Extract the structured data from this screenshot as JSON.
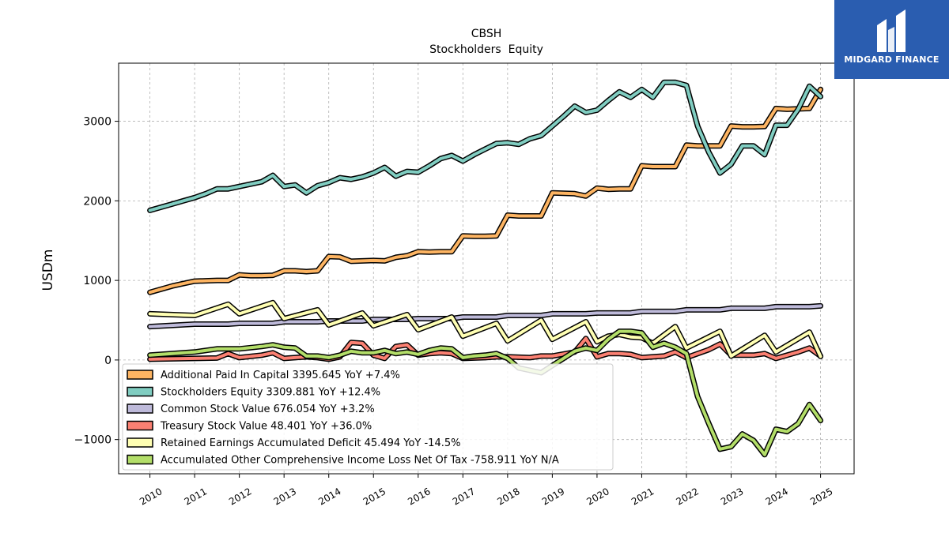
{
  "logo": {
    "text": "MIDGARD FINANCE",
    "bg_color": "#2a5db0"
  },
  "chart_data": {
    "type": "line",
    "title": "CBSH",
    "subtitle": "Stockholders  Equity",
    "ylabel": "USDm",
    "xlabel": "",
    "ylim": [
      -1430,
      3730
    ],
    "xlim": [
      2009.3,
      2025.75
    ],
    "yticks": [
      -1000,
      0,
      1000,
      2000,
      3000
    ],
    "ytick_labels": [
      "−1000",
      "0",
      "1000",
      "2000",
      "3000"
    ],
    "xticks": [
      2010,
      2011,
      2012,
      2013,
      2014,
      2015,
      2016,
      2017,
      2018,
      2019,
      2020,
      2021,
      2022,
      2023,
      2024,
      2025
    ],
    "grid": true,
    "legend_position": "lower-left",
    "series": [
      {
        "name": "Additional Paid In Capital",
        "legend": "Additional Paid In Capital  3395.645 YoY +7.4%",
        "color": "#fdb462",
        "points": [
          [
            2010.0,
            850
          ],
          [
            2010.25,
            890
          ],
          [
            2010.5,
            930
          ],
          [
            2010.75,
            960
          ],
          [
            2011.0,
            990
          ],
          [
            2011.25,
            995
          ],
          [
            2011.5,
            1000
          ],
          [
            2011.75,
            1000
          ],
          [
            2012.0,
            1070
          ],
          [
            2012.25,
            1060
          ],
          [
            2012.5,
            1060
          ],
          [
            2012.75,
            1065
          ],
          [
            2013.0,
            1120
          ],
          [
            2013.25,
            1120
          ],
          [
            2013.5,
            1110
          ],
          [
            2013.75,
            1120
          ],
          [
            2014.0,
            1300
          ],
          [
            2014.25,
            1295
          ],
          [
            2014.5,
            1240
          ],
          [
            2014.75,
            1245
          ],
          [
            2015.0,
            1250
          ],
          [
            2015.25,
            1245
          ],
          [
            2015.5,
            1290
          ],
          [
            2015.75,
            1310
          ],
          [
            2016.0,
            1360
          ],
          [
            2016.25,
            1355
          ],
          [
            2016.5,
            1360
          ],
          [
            2016.75,
            1360
          ],
          [
            2017.0,
            1560
          ],
          [
            2017.25,
            1555
          ],
          [
            2017.5,
            1555
          ],
          [
            2017.75,
            1560
          ],
          [
            2018.0,
            1820
          ],
          [
            2018.25,
            1810
          ],
          [
            2018.5,
            1810
          ],
          [
            2018.75,
            1810
          ],
          [
            2019.0,
            2100
          ],
          [
            2019.25,
            2095
          ],
          [
            2019.5,
            2090
          ],
          [
            2019.75,
            2060
          ],
          [
            2020.0,
            2160
          ],
          [
            2020.25,
            2145
          ],
          [
            2020.5,
            2150
          ],
          [
            2020.75,
            2150
          ],
          [
            2021.0,
            2440
          ],
          [
            2021.25,
            2430
          ],
          [
            2021.5,
            2430
          ],
          [
            2021.75,
            2430
          ],
          [
            2022.0,
            2700
          ],
          [
            2022.25,
            2690
          ],
          [
            2022.5,
            2690
          ],
          [
            2022.75,
            2690
          ],
          [
            2023.0,
            2940
          ],
          [
            2023.25,
            2930
          ],
          [
            2023.5,
            2930
          ],
          [
            2023.75,
            2935
          ],
          [
            2024.0,
            3160
          ],
          [
            2024.25,
            3150
          ],
          [
            2024.5,
            3155
          ],
          [
            2024.75,
            3160
          ],
          [
            2025.0,
            3400
          ]
        ]
      },
      {
        "name": "Stockholders Equity",
        "legend": "Stockholders Equity  3309.881 YoY +12.4%",
        "color": "#80cdc1",
        "points": [
          [
            2010.0,
            1880
          ],
          [
            2010.25,
            1920
          ],
          [
            2010.5,
            1960
          ],
          [
            2010.75,
            2000
          ],
          [
            2011.0,
            2040
          ],
          [
            2011.25,
            2090
          ],
          [
            2011.5,
            2150
          ],
          [
            2011.75,
            2150
          ],
          [
            2012.0,
            2180
          ],
          [
            2012.25,
            2210
          ],
          [
            2012.5,
            2240
          ],
          [
            2012.75,
            2320
          ],
          [
            2013.0,
            2180
          ],
          [
            2013.25,
            2200
          ],
          [
            2013.5,
            2100
          ],
          [
            2013.75,
            2190
          ],
          [
            2014.0,
            2230
          ],
          [
            2014.25,
            2290
          ],
          [
            2014.5,
            2270
          ],
          [
            2014.75,
            2300
          ],
          [
            2015.0,
            2350
          ],
          [
            2015.25,
            2420
          ],
          [
            2015.5,
            2310
          ],
          [
            2015.75,
            2370
          ],
          [
            2016.0,
            2360
          ],
          [
            2016.25,
            2440
          ],
          [
            2016.5,
            2530
          ],
          [
            2016.75,
            2570
          ],
          [
            2017.0,
            2500
          ],
          [
            2017.25,
            2580
          ],
          [
            2017.5,
            2650
          ],
          [
            2017.75,
            2720
          ],
          [
            2018.0,
            2730
          ],
          [
            2018.25,
            2710
          ],
          [
            2018.5,
            2780
          ],
          [
            2018.75,
            2820
          ],
          [
            2019.0,
            2940
          ],
          [
            2019.25,
            3060
          ],
          [
            2019.5,
            3190
          ],
          [
            2019.75,
            3110
          ],
          [
            2020.0,
            3140
          ],
          [
            2020.25,
            3260
          ],
          [
            2020.5,
            3370
          ],
          [
            2020.75,
            3300
          ],
          [
            2021.0,
            3400
          ],
          [
            2021.25,
            3300
          ],
          [
            2021.5,
            3490
          ],
          [
            2021.75,
            3490
          ],
          [
            2022.0,
            3450
          ],
          [
            2022.25,
            2940
          ],
          [
            2022.5,
            2610
          ],
          [
            2022.75,
            2350
          ],
          [
            2023.0,
            2460
          ],
          [
            2023.25,
            2690
          ],
          [
            2023.5,
            2690
          ],
          [
            2023.75,
            2580
          ],
          [
            2024.0,
            2950
          ],
          [
            2024.25,
            2950
          ],
          [
            2024.5,
            3150
          ],
          [
            2024.75,
            3440
          ],
          [
            2025.0,
            3310
          ]
        ]
      },
      {
        "name": "Common Stock Value",
        "legend": "Common Stock Value  676.054 YoY +3.2%",
        "color": "#bebada",
        "points": [
          [
            2010.0,
            420
          ],
          [
            2011.0,
            450
          ],
          [
            2011.75,
            450
          ],
          [
            2012.0,
            460
          ],
          [
            2012.75,
            460
          ],
          [
            2013.0,
            480
          ],
          [
            2013.75,
            480
          ],
          [
            2014.0,
            490
          ],
          [
            2014.75,
            490
          ],
          [
            2015.0,
            510
          ],
          [
            2015.75,
            510
          ],
          [
            2016.0,
            520
          ],
          [
            2016.75,
            520
          ],
          [
            2017.0,
            540
          ],
          [
            2017.75,
            540
          ],
          [
            2018.0,
            560
          ],
          [
            2018.75,
            560
          ],
          [
            2019.0,
            580
          ],
          [
            2019.75,
            580
          ],
          [
            2020.0,
            590
          ],
          [
            2020.75,
            590
          ],
          [
            2021.0,
            610
          ],
          [
            2021.75,
            610
          ],
          [
            2022.0,
            630
          ],
          [
            2022.75,
            630
          ],
          [
            2023.0,
            650
          ],
          [
            2023.75,
            650
          ],
          [
            2024.0,
            670
          ],
          [
            2024.75,
            670
          ],
          [
            2025.0,
            680
          ]
        ]
      },
      {
        "name": "Treasury Stock Value",
        "legend": "Treasury Stock Value  48.401 YoY +36.0%",
        "color": "#fb8072",
        "points": [
          [
            2010.0,
            10
          ],
          [
            2010.5,
            15
          ],
          [
            2011.0,
            20
          ],
          [
            2011.5,
            25
          ],
          [
            2011.75,
            80
          ],
          [
            2012.0,
            30
          ],
          [
            2012.5,
            60
          ],
          [
            2012.75,
            90
          ],
          [
            2013.0,
            20
          ],
          [
            2013.5,
            40
          ],
          [
            2013.75,
            30
          ],
          [
            2014.0,
            10
          ],
          [
            2014.25,
            40
          ],
          [
            2014.5,
            220
          ],
          [
            2014.75,
            210
          ],
          [
            2015.0,
            60
          ],
          [
            2015.25,
            20
          ],
          [
            2015.5,
            170
          ],
          [
            2015.75,
            190
          ],
          [
            2016.0,
            60
          ],
          [
            2016.25,
            80
          ],
          [
            2016.5,
            90
          ],
          [
            2016.75,
            80
          ],
          [
            2017.0,
            20
          ],
          [
            2017.5,
            30
          ],
          [
            2017.75,
            40
          ],
          [
            2018.0,
            40
          ],
          [
            2018.5,
            30
          ],
          [
            2018.75,
            50
          ],
          [
            2019.0,
            50
          ],
          [
            2019.5,
            100
          ],
          [
            2019.75,
            270
          ],
          [
            2020.0,
            40
          ],
          [
            2020.25,
            80
          ],
          [
            2020.5,
            80
          ],
          [
            2020.75,
            70
          ],
          [
            2021.0,
            30
          ],
          [
            2021.5,
            50
          ],
          [
            2021.75,
            100
          ],
          [
            2022.0,
            30
          ],
          [
            2022.5,
            130
          ],
          [
            2022.75,
            200
          ],
          [
            2023.0,
            60
          ],
          [
            2023.5,
            60
          ],
          [
            2023.75,
            80
          ],
          [
            2024.0,
            20
          ],
          [
            2024.5,
            100
          ],
          [
            2024.75,
            150
          ],
          [
            2025.0,
            50
          ]
        ]
      },
      {
        "name": "Retained Earnings Accumulated Deficit",
        "legend": "Retained Earnings Accumulated Deficit  45.494 YoY -14.5%",
        "color": "#ffffb3",
        "points": [
          [
            2010.0,
            580
          ],
          [
            2011.0,
            560
          ],
          [
            2011.75,
            700
          ],
          [
            2012.0,
            580
          ],
          [
            2012.75,
            720
          ],
          [
            2013.0,
            520
          ],
          [
            2013.75,
            630
          ],
          [
            2014.0,
            440
          ],
          [
            2014.75,
            590
          ],
          [
            2015.0,
            430
          ],
          [
            2015.75,
            570
          ],
          [
            2016.0,
            380
          ],
          [
            2016.75,
            540
          ],
          [
            2017.0,
            300
          ],
          [
            2017.75,
            460
          ],
          [
            2018.0,
            240
          ],
          [
            2018.75,
            500
          ],
          [
            2019.0,
            260
          ],
          [
            2019.75,
            480
          ],
          [
            2020.0,
            230
          ],
          [
            2020.25,
            300
          ],
          [
            2020.5,
            320
          ],
          [
            2020.75,
            290
          ],
          [
            2021.0,
            280
          ],
          [
            2021.25,
            210
          ],
          [
            2021.75,
            420
          ],
          [
            2022.0,
            150
          ],
          [
            2022.75,
            360
          ],
          [
            2023.0,
            50
          ],
          [
            2023.75,
            310
          ],
          [
            2024.0,
            100
          ],
          [
            2024.75,
            350
          ],
          [
            2025.0,
            45
          ]
        ]
      },
      {
        "name": "Accumulated Other Comprehensive Income Loss Net Of Tax",
        "legend": "Accumulated Other Comprehensive Income Loss Net Of Tax  -758.911 YoY N/A",
        "color": "#b3de69",
        "points": [
          [
            2010.0,
            60
          ],
          [
            2011.0,
            100
          ],
          [
            2011.5,
            140
          ],
          [
            2012.0,
            140
          ],
          [
            2012.5,
            170
          ],
          [
            2012.75,
            190
          ],
          [
            2013.0,
            160
          ],
          [
            2013.25,
            150
          ],
          [
            2013.5,
            50
          ],
          [
            2013.75,
            50
          ],
          [
            2014.0,
            30
          ],
          [
            2014.25,
            60
          ],
          [
            2014.5,
            110
          ],
          [
            2014.75,
            90
          ],
          [
            2015.0,
            90
          ],
          [
            2015.25,
            120
          ],
          [
            2015.5,
            80
          ],
          [
            2015.75,
            100
          ],
          [
            2016.0,
            70
          ],
          [
            2016.25,
            120
          ],
          [
            2016.5,
            150
          ],
          [
            2016.75,
            140
          ],
          [
            2017.0,
            30
          ],
          [
            2017.25,
            50
          ],
          [
            2017.5,
            60
          ],
          [
            2017.75,
            80
          ],
          [
            2018.0,
            20
          ],
          [
            2018.25,
            -100
          ],
          [
            2018.5,
            -130
          ],
          [
            2018.75,
            -160
          ],
          [
            2019.0,
            -70
          ],
          [
            2019.25,
            20
          ],
          [
            2019.5,
            110
          ],
          [
            2019.75,
            150
          ],
          [
            2020.0,
            120
          ],
          [
            2020.25,
            260
          ],
          [
            2020.5,
            360
          ],
          [
            2020.75,
            360
          ],
          [
            2021.0,
            340
          ],
          [
            2021.25,
            160
          ],
          [
            2021.5,
            210
          ],
          [
            2021.75,
            160
          ],
          [
            2022.0,
            80
          ],
          [
            2022.25,
            -460
          ],
          [
            2022.5,
            -800
          ],
          [
            2022.75,
            -1120
          ],
          [
            2023.0,
            -1090
          ],
          [
            2023.25,
            -930
          ],
          [
            2023.5,
            -1010
          ],
          [
            2023.75,
            -1190
          ],
          [
            2024.0,
            -870
          ],
          [
            2024.25,
            -900
          ],
          [
            2024.5,
            -800
          ],
          [
            2024.75,
            -560
          ],
          [
            2025.0,
            -760
          ]
        ]
      }
    ]
  }
}
